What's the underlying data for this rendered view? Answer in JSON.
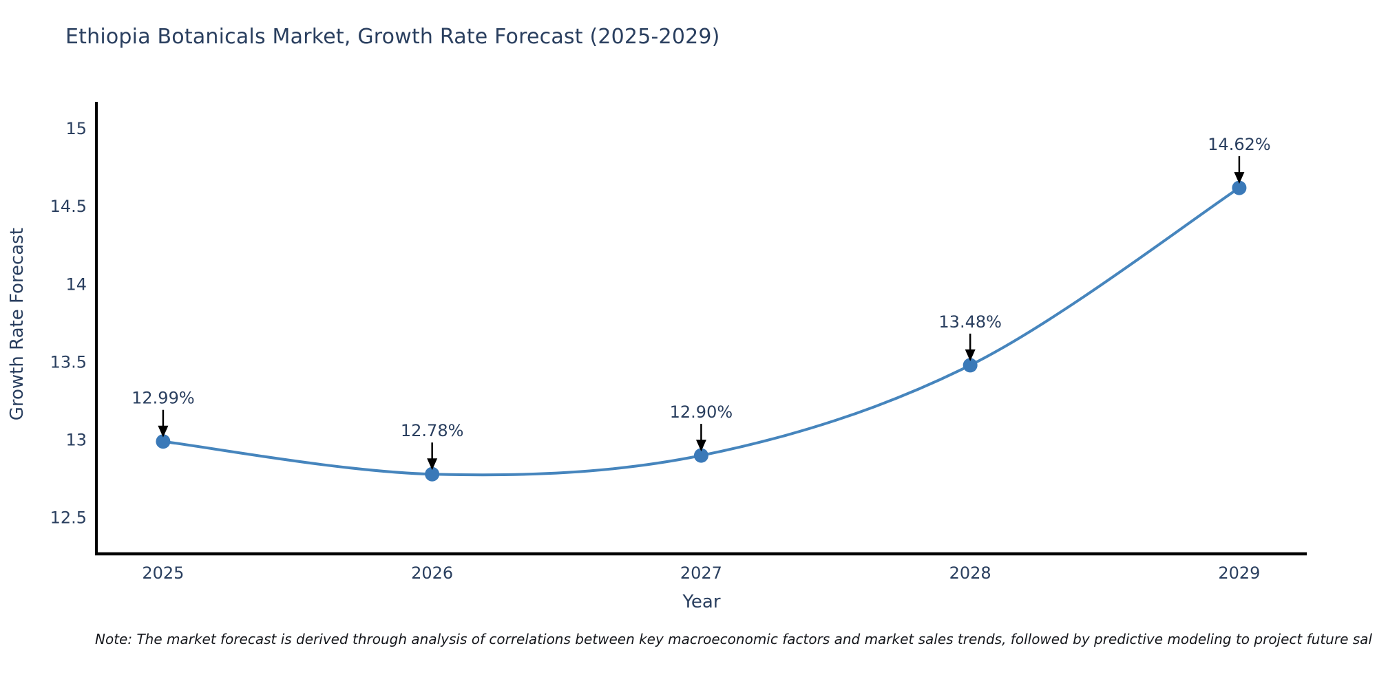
{
  "title": "Ethiopia Botanicals Market, Growth Rate Forecast (2025-2029)",
  "note": "Note: The market forecast is derived through analysis of correlations between key macroeconomic factors and market sales trends, followed by predictive modeling to project future sal",
  "chart_data": {
    "type": "line",
    "title": "Ethiopia Botanicals Market, Growth Rate Forecast (2025-2029)",
    "xlabel": "Year",
    "ylabel": "Growth Rate Forecast",
    "x": [
      2025,
      2026,
      2027,
      2028,
      2029
    ],
    "series": [
      {
        "name": "Growth Rate Forecast",
        "values": [
          12.99,
          12.78,
          12.9,
          13.48,
          14.62
        ]
      }
    ],
    "point_labels": [
      "12.99%",
      "12.78%",
      "12.90%",
      "13.48%",
      "14.62%"
    ],
    "x_tick_labels": [
      "2025",
      "2026",
      "2027",
      "2028",
      "2029"
    ],
    "y_ticks": [
      12.5,
      13,
      13.5,
      14,
      14.5,
      15
    ],
    "y_tick_labels": [
      "12.5",
      "13",
      "13.5",
      "14",
      "14.5",
      "15"
    ],
    "xlim": [
      2024.752,
      2029.251
    ],
    "ylim": [
      12.268,
      15.173
    ],
    "line_shape": "spline",
    "grid": false,
    "legend": "none",
    "line_color": "#4685bd",
    "marker_color": "#3a79b8",
    "axis_color": "#000000",
    "text_color": "#2a3f5f",
    "annotation_arrow_color": "#000000"
  }
}
